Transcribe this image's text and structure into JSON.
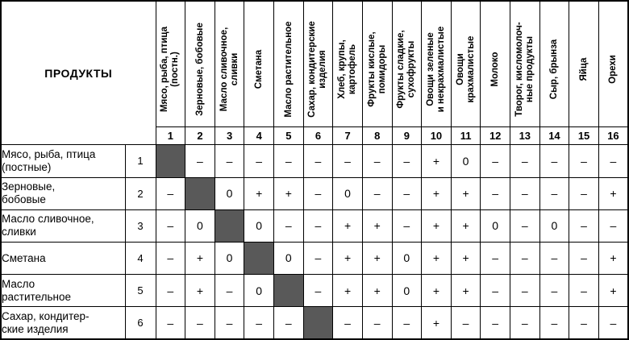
{
  "table": {
    "corner_label": "ПРОДУКТЫ",
    "diagonal_marker": "■",
    "colors": {
      "diagonal_cell": "#595959",
      "border": "#000000",
      "background": "#ffffff",
      "text": "#000000"
    },
    "columns": [
      {
        "num": "1",
        "label": "Мясо, рыба, птица\n(постн.)"
      },
      {
        "num": "2",
        "label": "Зерновые, бобовые"
      },
      {
        "num": "3",
        "label": "Масло сливочное,\nсливки"
      },
      {
        "num": "4",
        "label": "Сметана"
      },
      {
        "num": "5",
        "label": "Масло растительное"
      },
      {
        "num": "6",
        "label": "Сахар, кондитерские\nизделия"
      },
      {
        "num": "7",
        "label": "Хлеб, крупы,\nкартофель"
      },
      {
        "num": "8",
        "label": "Фрукты кислые,\nпомидоры"
      },
      {
        "num": "9",
        "label": "Фрукты сладкие,\nсухофрукты"
      },
      {
        "num": "10",
        "label": "Овощи зеленые\nи некрахмалистые"
      },
      {
        "num": "11",
        "label": "Овощи\nкрахмалистые"
      },
      {
        "num": "12",
        "label": "Молоко"
      },
      {
        "num": "13",
        "label": "Творог, кисломолоч-\nные продукты"
      },
      {
        "num": "14",
        "label": "Сыр, брынза"
      },
      {
        "num": "15",
        "label": "Яйца"
      },
      {
        "num": "16",
        "label": "Орехи"
      }
    ],
    "rows": [
      {
        "num": "1",
        "label": "Мясо, рыба, птица\n(постные)",
        "cells": [
          "■",
          "–",
          "–",
          "–",
          "–",
          "–",
          "–",
          "–",
          "–",
          "+",
          "0",
          "–",
          "–",
          "–",
          "–",
          "–"
        ]
      },
      {
        "num": "2",
        "label": "Зерновые,\nбобовые",
        "cells": [
          "–",
          "■",
          "0",
          "+",
          "+",
          "–",
          "0",
          "–",
          "–",
          "+",
          "+",
          "–",
          "–",
          "–",
          "–",
          "+"
        ]
      },
      {
        "num": "3",
        "label": "Масло сливочное,\nсливки",
        "cells": [
          "–",
          "0",
          "■",
          "0",
          "–",
          "–",
          "+",
          "+",
          "–",
          "+",
          "+",
          "0",
          "–",
          "0",
          "–",
          "–"
        ]
      },
      {
        "num": "4",
        "label": "Сметана",
        "cells": [
          "–",
          "+",
          "0",
          "■",
          "0",
          "–",
          "+",
          "+",
          "0",
          "+",
          "+",
          "–",
          "–",
          "–",
          "–",
          "+"
        ]
      },
      {
        "num": "5",
        "label": "Масло\nрастительное",
        "cells": [
          "–",
          "+",
          "–",
          "0",
          "■",
          "–",
          "+",
          "+",
          "0",
          "+",
          "+",
          "–",
          "–",
          "–",
          "–",
          "+"
        ]
      },
      {
        "num": "6",
        "label": "Сахар, кондитер-\nские изделия",
        "cells": [
          "–",
          "–",
          "–",
          "–",
          "–",
          "■",
          "–",
          "–",
          "–",
          "+",
          "–",
          "–",
          "–",
          "–",
          "–",
          "–"
        ]
      }
    ]
  }
}
